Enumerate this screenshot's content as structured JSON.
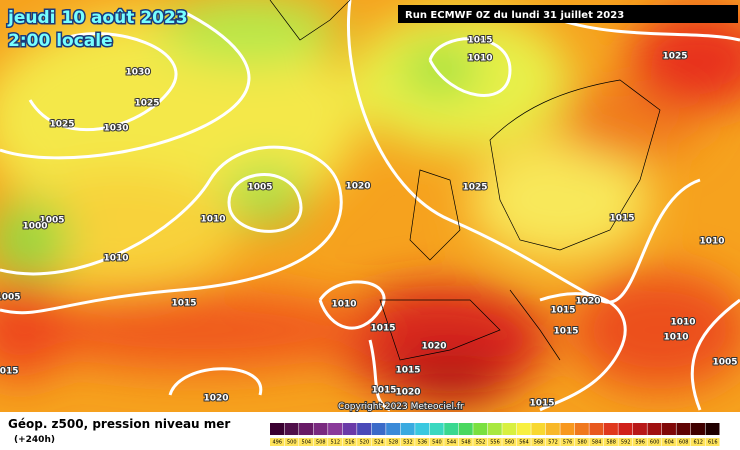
{
  "header": {
    "date": "jeudi 10 août 2023",
    "time": "2:00 locale",
    "run": "Run ECMWF 0Z du lundi 31 juillet 2023"
  },
  "map": {
    "isobar_labels": [
      "1015",
      "1010",
      "1030",
      "1025",
      "1025",
      "1030",
      "1025",
      "1005",
      "1020",
      "1025",
      "1010",
      "1005",
      "1000",
      "1015",
      "1010",
      "1010",
      "1005",
      "1015",
      "1010",
      "1020",
      "1015",
      "1015",
      "1015",
      "1010",
      "1020",
      "1010",
      "1015",
      "1005",
      "1015",
      "1015",
      "1020",
      "1020",
      "1015"
    ],
    "copyright": "Copyright 2023 Meteociel.fr"
  },
  "legend": {
    "title": "Géop. z500, pression niveau mer",
    "lead": "(+240h)",
    "scale": [
      496,
      500,
      504,
      508,
      512,
      516,
      520,
      524,
      528,
      532,
      536,
      540,
      544,
      548,
      552,
      556,
      560,
      564,
      568,
      572,
      576,
      580,
      584,
      588,
      592,
      596,
      600,
      604,
      608,
      612,
      616
    ]
  }
}
